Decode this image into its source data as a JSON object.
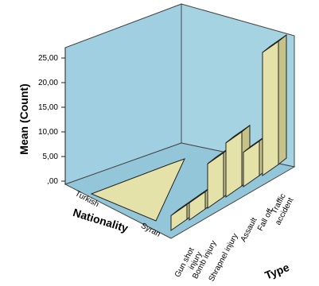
{
  "chart_data": {
    "type": "bar",
    "variant": "3d-ribbon",
    "title": "",
    "ylabel": "Mean (Count)",
    "xlabel": "Nationality",
    "zlabel": "Type",
    "nationality": [
      "Turkish",
      "Syran"
    ],
    "types": [
      "Gun shot injury",
      "Bomb injury",
      "Shrapnel injury",
      "Assault",
      "Fall off",
      "Traffic accident"
    ],
    "yticks": [
      "25,00",
      "20,00",
      "15,00",
      "10,00",
      "5,00",
      ",00"
    ],
    "ylim": [
      0,
      27
    ],
    "grid": false,
    "series": [
      {
        "name": "Turkish",
        "values": [
          0,
          0,
          0,
          0,
          0,
          0
        ]
      },
      {
        "name": "Syran",
        "values": [
          3,
          3.5,
          9,
          11,
          7,
          25
        ]
      }
    ],
    "colors": {
      "panel": "#9fcfe0",
      "bar_front": "#e4e2a8",
      "bar_side": "#c6c38a",
      "edge": "#222222",
      "frame": "#444444"
    }
  }
}
